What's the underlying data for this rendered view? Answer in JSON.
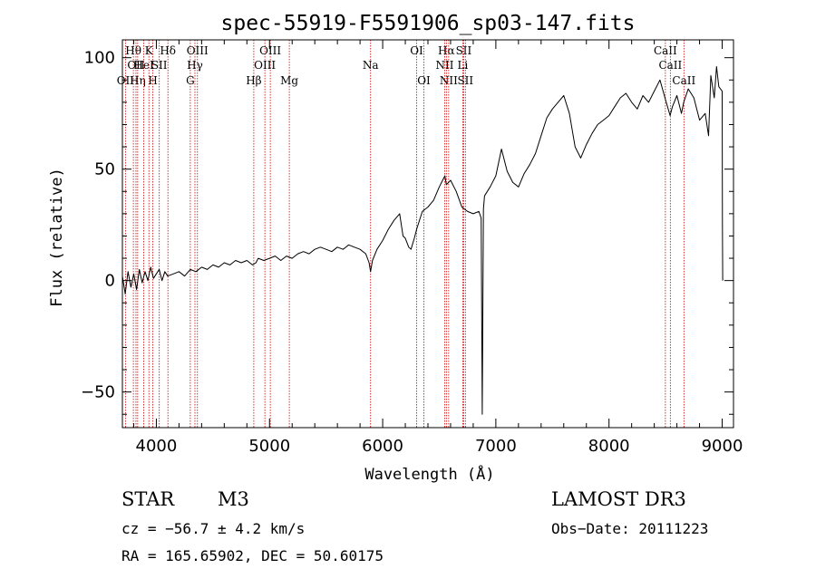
{
  "chart_data": {
    "type": "line",
    "title": "spec-55919-F5591906_sp03-147.fits",
    "xlabel": "Wavelength (Å)",
    "ylabel": "Flux (relative)",
    "xlim": [
      3700,
      9100
    ],
    "ylim": [
      -66,
      108
    ],
    "x_ticks": [
      4000,
      5000,
      6000,
      7000,
      8000,
      9000
    ],
    "y_ticks": [
      -50,
      0,
      50,
      100
    ],
    "series": [
      {
        "name": "flux",
        "points": [
          [
            3700,
            2
          ],
          [
            3725,
            -6
          ],
          [
            3750,
            4
          ],
          [
            3775,
            -3
          ],
          [
            3800,
            3
          ],
          [
            3825,
            -4
          ],
          [
            3850,
            5
          ],
          [
            3875,
            -1
          ],
          [
            3900,
            4
          ],
          [
            3925,
            0
          ],
          [
            3950,
            6
          ],
          [
            3975,
            1
          ],
          [
            4000,
            3
          ],
          [
            4025,
            5
          ],
          [
            4050,
            0
          ],
          [
            4075,
            4
          ],
          [
            4100,
            2
          ],
          [
            4150,
            3
          ],
          [
            4200,
            4
          ],
          [
            4250,
            2
          ],
          [
            4300,
            5
          ],
          [
            4350,
            4
          ],
          [
            4400,
            6
          ],
          [
            4450,
            5
          ],
          [
            4500,
            7
          ],
          [
            4550,
            6
          ],
          [
            4600,
            8
          ],
          [
            4650,
            7
          ],
          [
            4700,
            9
          ],
          [
            4750,
            8
          ],
          [
            4800,
            9
          ],
          [
            4850,
            7
          ],
          [
            4880,
            8
          ],
          [
            4900,
            10
          ],
          [
            4950,
            9
          ],
          [
            5000,
            10
          ],
          [
            5050,
            11
          ],
          [
            5100,
            9
          ],
          [
            5150,
            11
          ],
          [
            5200,
            10
          ],
          [
            5250,
            12
          ],
          [
            5300,
            13
          ],
          [
            5350,
            12
          ],
          [
            5400,
            14
          ],
          [
            5450,
            15
          ],
          [
            5500,
            14
          ],
          [
            5550,
            13
          ],
          [
            5600,
            15
          ],
          [
            5650,
            14
          ],
          [
            5700,
            16
          ],
          [
            5750,
            15
          ],
          [
            5800,
            14
          ],
          [
            5850,
            12
          ],
          [
            5880,
            8
          ],
          [
            5893,
            4
          ],
          [
            5910,
            9
          ],
          [
            5950,
            14
          ],
          [
            6000,
            18
          ],
          [
            6050,
            23
          ],
          [
            6100,
            27
          ],
          [
            6150,
            30
          ],
          [
            6180,
            20
          ],
          [
            6200,
            19
          ],
          [
            6230,
            15
          ],
          [
            6250,
            14
          ],
          [
            6280,
            19
          ],
          [
            6300,
            23
          ],
          [
            6350,
            31
          ],
          [
            6400,
            33
          ],
          [
            6450,
            36
          ],
          [
            6500,
            42
          ],
          [
            6550,
            47
          ],
          [
            6563,
            43
          ],
          [
            6600,
            45
          ],
          [
            6650,
            40
          ],
          [
            6700,
            33
          ],
          [
            6750,
            31
          ],
          [
            6800,
            30
          ],
          [
            6850,
            31
          ],
          [
            6870,
            28
          ],
          [
            6880,
            -60
          ],
          [
            6890,
            32
          ],
          [
            6900,
            38
          ],
          [
            6950,
            42
          ],
          [
            7000,
            47
          ],
          [
            7050,
            59
          ],
          [
            7100,
            49
          ],
          [
            7150,
            44
          ],
          [
            7200,
            42
          ],
          [
            7250,
            48
          ],
          [
            7300,
            52
          ],
          [
            7350,
            57
          ],
          [
            7400,
            65
          ],
          [
            7450,
            73
          ],
          [
            7500,
            77
          ],
          [
            7550,
            80
          ],
          [
            7600,
            83
          ],
          [
            7650,
            75
          ],
          [
            7700,
            60
          ],
          [
            7750,
            55
          ],
          [
            7800,
            61
          ],
          [
            7850,
            66
          ],
          [
            7900,
            70
          ],
          [
            7950,
            72
          ],
          [
            8000,
            74
          ],
          [
            8050,
            78
          ],
          [
            8100,
            82
          ],
          [
            8150,
            84
          ],
          [
            8200,
            80
          ],
          [
            8250,
            77
          ],
          [
            8300,
            83
          ],
          [
            8350,
            80
          ],
          [
            8400,
            85
          ],
          [
            8450,
            90
          ],
          [
            8500,
            81
          ],
          [
            8540,
            74
          ],
          [
            8560,
            78
          ],
          [
            8600,
            83
          ],
          [
            8640,
            75
          ],
          [
            8660,
            80
          ],
          [
            8700,
            86
          ],
          [
            8750,
            82
          ],
          [
            8800,
            72
          ],
          [
            8850,
            75
          ],
          [
            8880,
            65
          ],
          [
            8900,
            92
          ],
          [
            8930,
            82
          ],
          [
            8950,
            96
          ],
          [
            8970,
            87
          ],
          [
            9000,
            85
          ],
          [
            9002,
            25
          ],
          [
            9005,
            0
          ]
        ]
      }
    ],
    "reference_lines": [
      {
        "wl": 3727,
        "label": "OII",
        "row": 3
      },
      {
        "wl": 3797,
        "label": "Hθ",
        "row": 1
      },
      {
        "wl": 3820,
        "label": "OII",
        "row": 2
      },
      {
        "wl": 3835,
        "label": "Hη",
        "row": 3
      },
      {
        "wl": 3889,
        "label": "HeI",
        "row": 2
      },
      {
        "wl": 3934,
        "label": "K",
        "row": 1
      },
      {
        "wl": 3969,
        "label": "H",
        "row": 3
      },
      {
        "wl": 4026,
        "label": "SII",
        "row": 2
      },
      {
        "wl": 4102,
        "label": "Hδ",
        "row": 1
      },
      {
        "wl": 4300,
        "label": "G",
        "row": 3
      },
      {
        "wl": 4341,
        "label": "Hγ",
        "row": 2
      },
      {
        "wl": 4363,
        "label": "OIII",
        "row": 1
      },
      {
        "wl": 4861,
        "label": "Hβ",
        "row": 3
      },
      {
        "wl": 4959,
        "label": "OIII",
        "row": 2
      },
      {
        "wl": 5007,
        "label": "OIII",
        "row": 1
      },
      {
        "wl": 5175,
        "label": "Mg",
        "row": 3
      },
      {
        "wl": 5893,
        "label": "Na",
        "row": 2
      },
      {
        "wl": 6300,
        "label": "OI",
        "row": 1
      },
      {
        "wl": 6364,
        "label": "OI",
        "row": 3
      },
      {
        "wl": 6548,
        "label": "NII",
        "row": 2
      },
      {
        "wl": 6563,
        "label": "Hα",
        "row": 1
      },
      {
        "wl": 6583,
        "label": "NII",
        "row": 3
      },
      {
        "wl": 6708,
        "label": "Li",
        "row": 2
      },
      {
        "wl": 6716,
        "label": "SII",
        "row": 1
      },
      {
        "wl": 6731,
        "label": "SII",
        "row": 3
      },
      {
        "wl": 8498,
        "label": "CaII",
        "row": 1
      },
      {
        "wl": 8542,
        "label": "CaII",
        "row": 2
      },
      {
        "wl": 8662,
        "label": "CaII",
        "row": 3
      }
    ]
  },
  "info": {
    "object_class": "STAR",
    "subclass": "M3",
    "survey": "LAMOST DR3",
    "redshift_text": "cz = −56.7 ± 4.2 km/s",
    "obs_date_text": "Obs−Date: 20111223",
    "coords_text": "RA = 165.65902, DEC =  50.60175"
  },
  "colors": {
    "spectrum": "#000000",
    "line_marker": "#cc0000",
    "axis": "#000000"
  }
}
